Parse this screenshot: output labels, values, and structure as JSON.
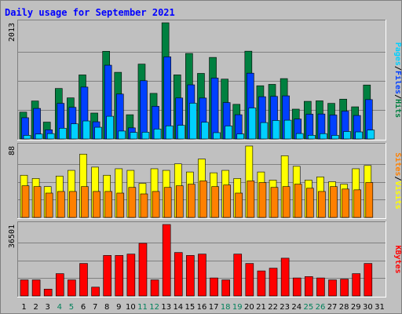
{
  "chart_data": {
    "type": "bar",
    "title": "Daily usage for September 2021",
    "categories": [
      "1",
      "2",
      "3",
      "4",
      "5",
      "6",
      "7",
      "8",
      "9",
      "10",
      "11",
      "12",
      "13",
      "14",
      "15",
      "16",
      "17",
      "18",
      "19",
      "20",
      "21",
      "22",
      "23",
      "24",
      "25",
      "26",
      "27",
      "28",
      "29",
      "30",
      "31"
    ],
    "weekend_days": [
      "4",
      "5",
      "11",
      "12",
      "18",
      "19",
      "25",
      "26"
    ],
    "panels": [
      {
        "id": "hits",
        "ymax_label": "2013",
        "ymax": 2013,
        "series": [
          {
            "name": "Hits",
            "color": "#008040",
            "values": [
              465,
              658,
              292,
              875,
              712,
              1110,
              449,
              1519,
              1155,
              420,
              1297,
              790,
              2013,
              1111,
              1482,
              1136,
              1413,
              1037,
              600,
              1521,
              922,
              946,
              1046,
              517,
              652,
              661,
              617,
              690,
              557,
              935,
              0
            ]
          },
          {
            "name": "Files",
            "color": "#0040ff",
            "values": [
              368,
              529,
              159,
              617,
              548,
              899,
              298,
              1278,
              778,
              192,
              1009,
              566,
              1423,
              710,
              938,
              709,
              1055,
              631,
              420,
              1140,
              732,
              738,
              747,
              345,
              429,
              433,
              415,
              482,
              407,
              682,
              0
            ]
          },
          {
            "name": "Pages",
            "color": "#00d0ff",
            "values": [
              62,
              85,
              93,
              186,
              262,
              312,
              203,
              393,
              137,
              114,
              117,
              172,
              227,
              237,
              620,
              289,
              109,
              225,
              87,
              537,
              284,
              320,
              325,
              94,
              64,
              92,
              62,
              129,
              122,
              154,
              0
            ]
          }
        ]
      },
      {
        "id": "visits",
        "ymax_label": "88",
        "ymax": 88,
        "series": [
          {
            "name": "Visits",
            "color": "#ffff00",
            "values": [
              52,
              48,
              38,
              51,
              58,
              78,
              62,
              52,
              60,
              58,
              42,
              60,
              58,
              66,
              56,
              72,
              55,
              58,
              48,
              88,
              56,
              46,
              76,
              63,
              46,
              50,
              44,
              41,
              60,
              64,
              0
            ]
          },
          {
            "name": "Sites",
            "color": "#ff8000",
            "values": [
              39,
              38,
              30,
              32,
              32,
              38,
              32,
              32,
              30,
              37,
              29,
              32,
              37,
              39,
              41,
              45,
              38,
              40,
              30,
              45,
              43,
              37,
              38,
              41,
              36,
              32,
              38,
              35,
              34,
              43,
              0
            ]
          }
        ]
      },
      {
        "id": "kbytes",
        "ymax_label": "36501",
        "ymax": 36501,
        "series": [
          {
            "name": "KBytes",
            "color": "#ff0000",
            "values": [
              8200,
              8200,
              3500,
              11400,
              8200,
              16600,
              4500,
              20700,
              20700,
              21400,
              26900,
              8200,
              36501,
              22200,
              20700,
              21400,
              9200,
              8200,
              21400,
              16600,
              12800,
              14200,
              19300,
              9200,
              9900,
              9200,
              8200,
              8600,
              11400,
              16600,
              0
            ]
          }
        ]
      }
    ],
    "side_labels": {
      "hits": {
        "parts": [
          "Pages",
          "Files",
          "Hits"
        ],
        "colors": [
          "#00d0ff",
          "#0040ff",
          "#008040"
        ],
        "sep": "/"
      },
      "visits": {
        "parts": [
          "Sites",
          "Visits"
        ],
        "colors": [
          "#ff8000",
          "#ffff00"
        ],
        "sep": "/"
      },
      "kbytes": {
        "parts": [
          "KBytes"
        ],
        "colors": [
          "#ff0000"
        ],
        "sep": "/"
      }
    }
  }
}
